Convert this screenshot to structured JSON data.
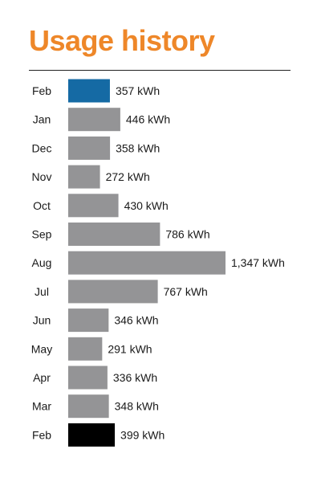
{
  "title": "Usage history",
  "colors": {
    "title": "#ee8729",
    "rule": "#222222",
    "bar_default": "#949496",
    "bar_current": "#156aa4",
    "bar_prior_year": "#000000"
  },
  "chart_data": {
    "type": "bar",
    "orientation": "horizontal",
    "title": "Usage history",
    "categories": [
      "Feb",
      "Jan",
      "Dec",
      "Nov",
      "Oct",
      "Sep",
      "Aug",
      "Jul",
      "Jun",
      "May",
      "Apr",
      "Mar",
      "Feb"
    ],
    "values": [
      357,
      446,
      358,
      272,
      430,
      786,
      1347,
      767,
      346,
      291,
      336,
      348,
      399
    ],
    "value_labels": [
      "357 kWh",
      "446 kWh",
      "358 kWh",
      "272 kWh",
      "430 kWh",
      "786 kWh",
      "1,347 kWh",
      "767 kWh",
      "346 kWh",
      "291 kWh",
      "336 kWh",
      "348 kWh",
      "399 kWh"
    ],
    "bar_colors": [
      "#156aa4",
      "#949496",
      "#949496",
      "#949496",
      "#949496",
      "#949496",
      "#949496",
      "#949496",
      "#949496",
      "#949496",
      "#949496",
      "#949496",
      "#000000"
    ],
    "unit": "kWh",
    "xlabel": "",
    "ylabel": "",
    "grid": false,
    "legend": "none"
  }
}
